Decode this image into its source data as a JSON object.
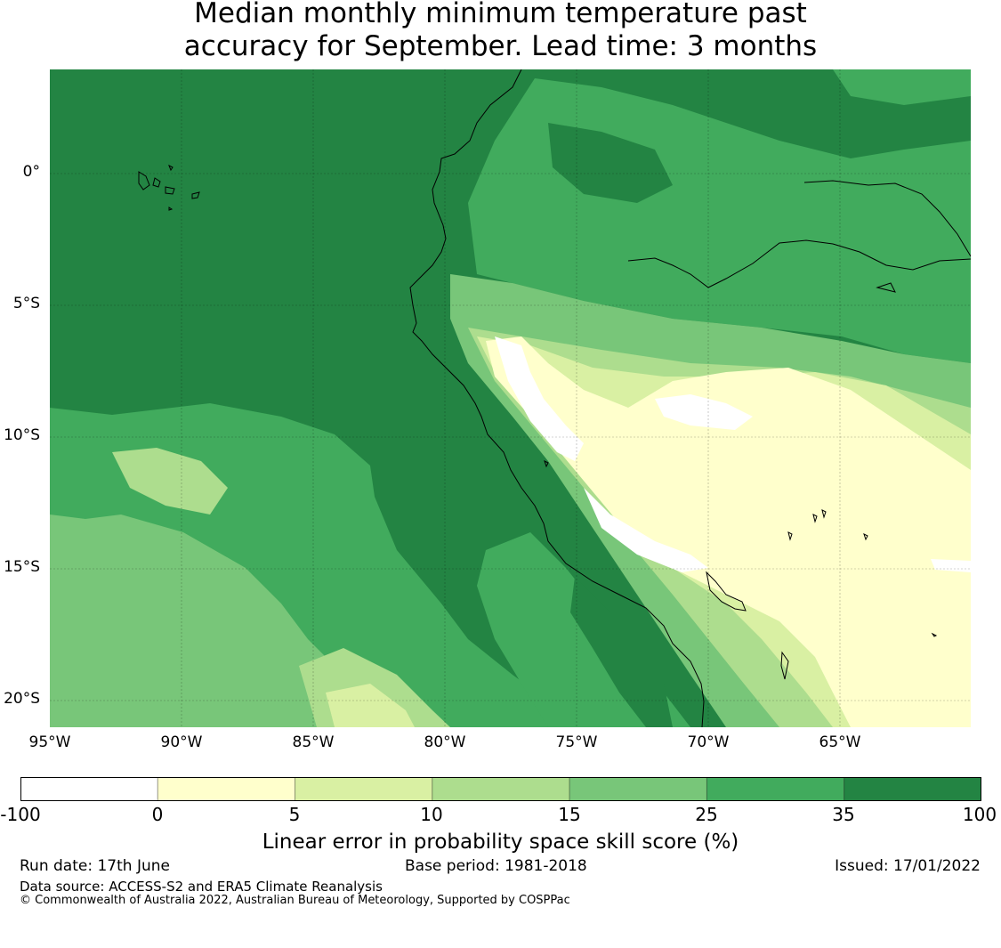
{
  "title": {
    "line1": "Median monthly minimum temperature past",
    "line2": "accuracy for September. Lead time: 3 months"
  },
  "map": {
    "lon_range": [
      -95,
      -60
    ],
    "lat_range": [
      -21,
      4
    ],
    "lat_ticks": [
      {
        "value": 0,
        "label": "0°"
      },
      {
        "value": -5,
        "label": "5°S"
      },
      {
        "value": -10,
        "label": "10°S"
      },
      {
        "value": -15,
        "label": "15°S"
      },
      {
        "value": -20,
        "label": "20°S"
      }
    ],
    "lon_ticks": [
      {
        "value": -95,
        "label": "95°W"
      },
      {
        "value": -90,
        "label": "90°W"
      },
      {
        "value": -85,
        "label": "85°W"
      },
      {
        "value": -80,
        "label": "80°W"
      },
      {
        "value": -75,
        "label": "75°W"
      },
      {
        "value": -70,
        "label": "70°W"
      },
      {
        "value": -65,
        "label": "65°W"
      }
    ]
  },
  "colorbar": {
    "bins": [
      {
        "from": -100,
        "to": 0,
        "color": "#ffffff"
      },
      {
        "from": 0,
        "to": 5,
        "color": "#ffffcc"
      },
      {
        "from": 5,
        "to": 10,
        "color": "#d9f0a3"
      },
      {
        "from": 10,
        "to": 15,
        "color": "#addd8e"
      },
      {
        "from": 15,
        "to": 25,
        "color": "#78c679"
      },
      {
        "from": 25,
        "to": 35,
        "color": "#41ab5d"
      },
      {
        "from": 35,
        "to": 100,
        "color": "#238443"
      }
    ],
    "tick_labels": [
      "-100",
      "0",
      "5",
      "10",
      "15",
      "25",
      "35",
      "100"
    ],
    "label": "Linear error in probability space skill score (%)"
  },
  "footer": {
    "run_date": "Run date: 17th June",
    "base_period": "Base period: 1981-2018",
    "issued": "Issued: 17/01/2022",
    "data_source": "Data source: ACCESS-S2 and ERA5 Climate Reanalysis",
    "copyright": "© Commonwealth of Australia 2022, Australian Bureau of Meteorology, Supported by COSPPac"
  }
}
